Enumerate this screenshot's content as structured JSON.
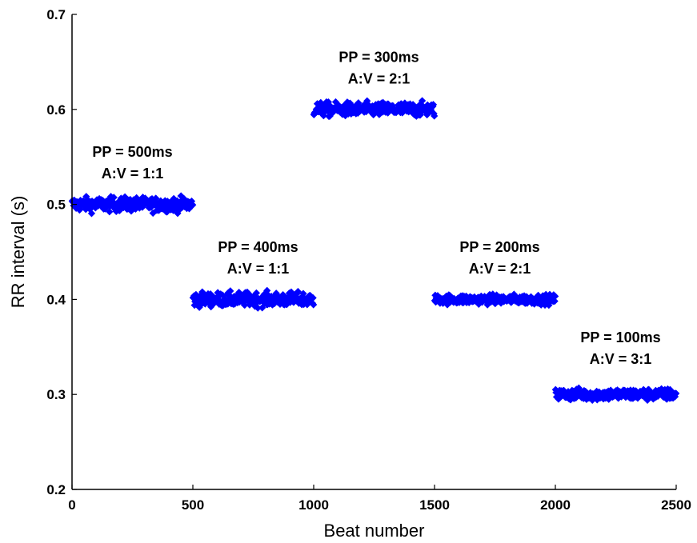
{
  "chart_data": {
    "type": "scatter",
    "title": "",
    "xlabel": "Beat number",
    "ylabel": "RR interval (s)",
    "xlim": [
      0,
      2500
    ],
    "ylim": [
      0.2,
      0.7
    ],
    "xticks": [
      "0",
      "500",
      "1000",
      "1500",
      "2000",
      "2500"
    ],
    "yticks": [
      "0.2",
      "0.3",
      "0.4",
      "0.5",
      "0.6",
      "0.7"
    ],
    "grid": false,
    "marker_color": "#0000ff",
    "series": [
      {
        "x_range": [
          0,
          500
        ],
        "y_mean": 0.5,
        "jitter": 0.006
      },
      {
        "x_range": [
          500,
          1000
        ],
        "y_mean": 0.4,
        "jitter": 0.006
      },
      {
        "x_range": [
          1000,
          1500
        ],
        "y_mean": 0.6,
        "jitter": 0.006
      },
      {
        "x_range": [
          1500,
          2000
        ],
        "y_mean": 0.4,
        "jitter": 0.004
      },
      {
        "x_range": [
          2000,
          2500
        ],
        "y_mean": 0.3,
        "jitter": 0.005
      }
    ],
    "annotations": [
      {
        "line1": "PP = 500ms",
        "line2": "A:V = 1:1",
        "x": 250,
        "y": 0.55
      },
      {
        "line1": "PP = 400ms",
        "line2": "A:V = 1:1",
        "x": 770,
        "y": 0.45
      },
      {
        "line1": "PP = 300ms",
        "line2": "A:V = 2:1",
        "x": 1270,
        "y": 0.65
      },
      {
        "line1": "PP = 200ms",
        "line2": "A:V = 2:1",
        "x": 1770,
        "y": 0.45
      },
      {
        "line1": "PP = 100ms",
        "line2": "A:V = 3:1",
        "x": 2270,
        "y": 0.355
      }
    ]
  }
}
